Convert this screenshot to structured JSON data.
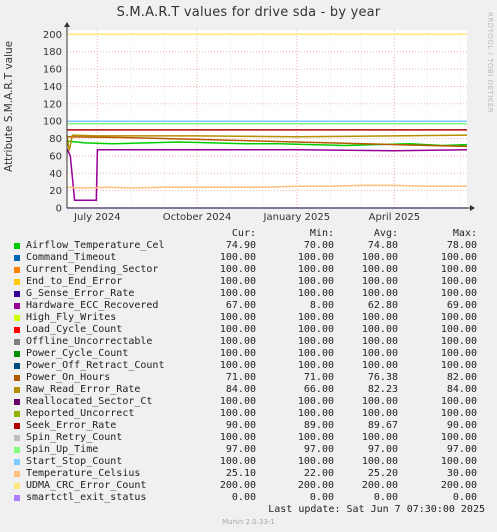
{
  "chart_data": {
    "type": "line",
    "title": "S.M.A.R.T values for drive sda - by year",
    "ylabel": "Attribute S.M.A.R.T value",
    "ylim": [
      0,
      205
    ],
    "yticks": [
      0,
      20,
      40,
      60,
      80,
      100,
      120,
      140,
      160,
      180,
      200
    ],
    "xlim": [
      "2024-06-03",
      "2025-06-07"
    ],
    "xticks": [
      {
        "label": "July 2024",
        "date": "2024-07-01"
      },
      {
        "label": "October 2024",
        "date": "2024-10-01"
      },
      {
        "label": "January 2025",
        "date": "2025-01-01"
      },
      {
        "label": "April 2025",
        "date": "2025-04-01"
      }
    ],
    "grid": true,
    "side_label": "RRDTOOL / TOBI OETIKER",
    "columns": [
      "",
      "Cur:",
      "Min:",
      "Avg:",
      "Max:"
    ],
    "series": [
      {
        "name": "Airflow_Temperature_Cel",
        "color": "#00cc00",
        "cur": "74.90",
        "min": "70.00",
        "avg": "74.80",
        "max": "78.00",
        "x": [
          "2024-06-03",
          "2024-06-20",
          "2024-07-15",
          "2024-08-15",
          "2024-09-15",
          "2024-10-15",
          "2024-11-15",
          "2024-12-15",
          "2025-01-15",
          "2025-02-15",
          "2025-03-15",
          "2025-04-15",
          "2025-05-15",
          "2025-06-07"
        ],
        "y": [
          77,
          75,
          74,
          75,
          76,
          75,
          74,
          74,
          73,
          72,
          73,
          74,
          72,
          73
        ]
      },
      {
        "name": "Command_Timeout",
        "color": "#0066b3",
        "cur": "100.00",
        "min": "100.00",
        "avg": "100.00",
        "max": "100.00",
        "x": [
          "2024-06-03",
          "2025-06-07"
        ],
        "y": [
          100,
          100
        ]
      },
      {
        "name": "Current_Pending_Sector",
        "color": "#ff8000",
        "cur": "100.00",
        "min": "100.00",
        "avg": "100.00",
        "max": "100.00",
        "x": [
          "2024-06-03",
          "2025-06-07"
        ],
        "y": [
          100,
          100
        ]
      },
      {
        "name": "End_to_End_Error",
        "color": "#ffcc00",
        "cur": "100.00",
        "min": "100.00",
        "avg": "100.00",
        "max": "100.00",
        "x": [
          "2024-06-03",
          "2025-06-07"
        ],
        "y": [
          100,
          100
        ]
      },
      {
        "name": "G_Sense_Error_Rate",
        "color": "#330099",
        "cur": "100.00",
        "min": "100.00",
        "avg": "100.00",
        "max": "100.00",
        "x": [
          "2024-06-03",
          "2025-06-07"
        ],
        "y": [
          100,
          100
        ]
      },
      {
        "name": "Hardware_ECC_Recovered",
        "color": "#990099",
        "cur": "67.00",
        "min": "8.00",
        "avg": "62.80",
        "max": "69.00",
        "x": [
          "2024-06-03",
          "2024-06-06",
          "2024-06-10",
          "2024-06-30",
          "2024-07-01",
          "2024-08-01",
          "2024-10-01",
          "2025-01-01",
          "2025-04-01",
          "2025-06-07"
        ],
        "y": [
          68,
          60,
          9,
          9,
          67,
          67,
          67,
          67,
          66,
          67
        ]
      },
      {
        "name": "High_Fly_Writes",
        "color": "#ccff00",
        "cur": "100.00",
        "min": "100.00",
        "avg": "100.00",
        "max": "100.00",
        "x": [
          "2024-06-03",
          "2025-06-07"
        ],
        "y": [
          100,
          100
        ]
      },
      {
        "name": "Load_Cycle_Count",
        "color": "#ff0000",
        "cur": "100.00",
        "min": "100.00",
        "avg": "100.00",
        "max": "100.00",
        "x": [
          "2024-06-03",
          "2025-06-07"
        ],
        "y": [
          100,
          100
        ]
      },
      {
        "name": "Offline_Uncorrectable",
        "color": "#808080",
        "cur": "100.00",
        "min": "100.00",
        "avg": "100.00",
        "max": "100.00",
        "x": [
          "2024-06-03",
          "2025-06-07"
        ],
        "y": [
          100,
          100
        ]
      },
      {
        "name": "Power_Cycle_Count",
        "color": "#008f00",
        "cur": "100.00",
        "min": "100.00",
        "avg": "100.00",
        "max": "100.00",
        "x": [
          "2024-06-03",
          "2025-06-07"
        ],
        "y": [
          100,
          100
        ]
      },
      {
        "name": "Power_Off_Retract_Count",
        "color": "#00487d",
        "cur": "100.00",
        "min": "100.00",
        "avg": "100.00",
        "max": "100.00",
        "x": [
          "2024-06-03",
          "2025-06-07"
        ],
        "y": [
          100,
          100
        ]
      },
      {
        "name": "Power_On_Hours",
        "color": "#b35a00",
        "cur": "71.00",
        "min": "71.00",
        "avg": "76.38",
        "max": "82.00",
        "x": [
          "2024-06-03",
          "2024-08-01",
          "2024-10-01",
          "2024-12-01",
          "2025-02-01",
          "2025-04-01",
          "2025-06-07"
        ],
        "y": [
          82,
          81,
          79,
          77,
          75,
          73,
          71
        ]
      },
      {
        "name": "Raw_Read_Error_Rate",
        "color": "#b38f00",
        "cur": "84.00",
        "min": "66.00",
        "avg": "82.23",
        "max": "84.00",
        "x": [
          "2024-06-03",
          "2024-06-05",
          "2024-06-08",
          "2024-07-01",
          "2024-10-01",
          "2025-01-01",
          "2025-04-01",
          "2025-06-07"
        ],
        "y": [
          84,
          66,
          84,
          83,
          83,
          82,
          83,
          84
        ]
      },
      {
        "name": "Reallocated_Sector_Ct",
        "color": "#6b006b",
        "cur": "100.00",
        "min": "100.00",
        "avg": "100.00",
        "max": "100.00",
        "x": [
          "2024-06-03",
          "2025-06-07"
        ],
        "y": [
          100,
          100
        ]
      },
      {
        "name": "Reported_Uncorrect",
        "color": "#8fb300",
        "cur": "100.00",
        "min": "100.00",
        "avg": "100.00",
        "max": "100.00",
        "x": [
          "2024-06-03",
          "2025-06-07"
        ],
        "y": [
          100,
          100
        ]
      },
      {
        "name": "Seek_Error_Rate",
        "color": "#b30000",
        "cur": "90.00",
        "min": "89.00",
        "avg": "89.67",
        "max": "90.00",
        "x": [
          "2024-06-03",
          "2025-06-07"
        ],
        "y": [
          90,
          90
        ]
      },
      {
        "name": "Spin_Retry_Count",
        "color": "#bebebe",
        "cur": "100.00",
        "min": "100.00",
        "avg": "100.00",
        "max": "100.00",
        "x": [
          "2024-06-03",
          "2025-06-07"
        ],
        "y": [
          100,
          100
        ]
      },
      {
        "name": "Spin_Up_Time",
        "color": "#80ff80",
        "cur": "97.00",
        "min": "97.00",
        "avg": "97.00",
        "max": "97.00",
        "x": [
          "2024-06-03",
          "2025-06-07"
        ],
        "y": [
          97,
          97
        ]
      },
      {
        "name": "Start_Stop_Count",
        "color": "#80c9ff",
        "cur": "100.00",
        "min": "100.00",
        "avg": "100.00",
        "max": "100.00",
        "x": [
          "2024-06-03",
          "2025-06-07"
        ],
        "y": [
          100,
          100
        ]
      },
      {
        "name": "Temperature_Celsius",
        "color": "#ffc080",
        "cur": "25.10",
        "min": "22.00",
        "avg": "25.20",
        "max": "30.00",
        "x": [
          "2024-06-03",
          "2024-06-20",
          "2024-07-10",
          "2024-08-01",
          "2024-09-01",
          "2024-10-01",
          "2024-11-01",
          "2024-12-01",
          "2025-01-01",
          "2025-02-01",
          "2025-03-01",
          "2025-04-01",
          "2025-05-01",
          "2025-06-07"
        ],
        "y": [
          24,
          23,
          24,
          23,
          24,
          24,
          24,
          24,
          25,
          25,
          26,
          26,
          25,
          25
        ]
      },
      {
        "name": "UDMA_CRC_Error_Count",
        "color": "#ffe680",
        "cur": "200.00",
        "min": "200.00",
        "avg": "200.00",
        "max": "200.00",
        "x": [
          "2024-06-03",
          "2025-06-07"
        ],
        "y": [
          200,
          200
        ]
      },
      {
        "name": "smartctl_exit_status",
        "color": "#aa80ff",
        "cur": "0.00",
        "min": "0.00",
        "avg": "0.00",
        "max": "0.00",
        "x": [
          "2024-06-03",
          "2025-06-07"
        ],
        "y": [
          0,
          0
        ]
      }
    ]
  },
  "footer": {
    "last_update": "Last update:  Sat Jun  7 07:30:00 2025",
    "munin_version": "Munin 2.0.33-1"
  }
}
